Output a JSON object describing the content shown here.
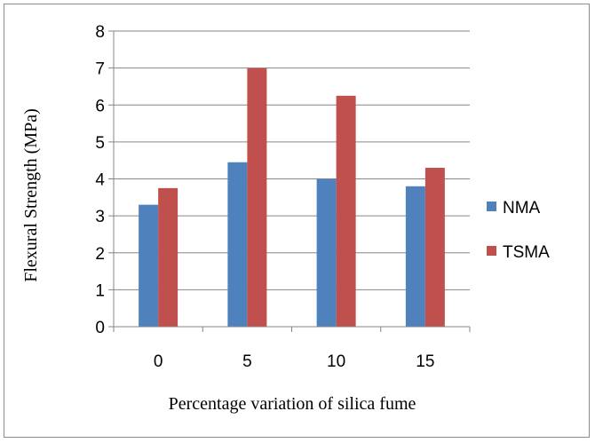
{
  "chart_data": {
    "type": "bar",
    "categories": [
      "0",
      "5",
      "10",
      "15"
    ],
    "series": [
      {
        "name": "NMA",
        "values": [
          3.3,
          4.45,
          4.0,
          3.8
        ],
        "color": "#4f81bd"
      },
      {
        "name": "TSMA",
        "values": [
          3.75,
          7.0,
          6.25,
          4.3
        ],
        "color": "#c0504d"
      }
    ],
    "xlabel": "Percentage variation of silica fume",
    "ylabel": "Flexural Strength (MPa)",
    "ylim": [
      0,
      8
    ],
    "yticks": [
      "0",
      "1",
      "2",
      "3",
      "4",
      "5",
      "6",
      "7",
      "8"
    ],
    "grid": true,
    "legend_position": "right"
  }
}
